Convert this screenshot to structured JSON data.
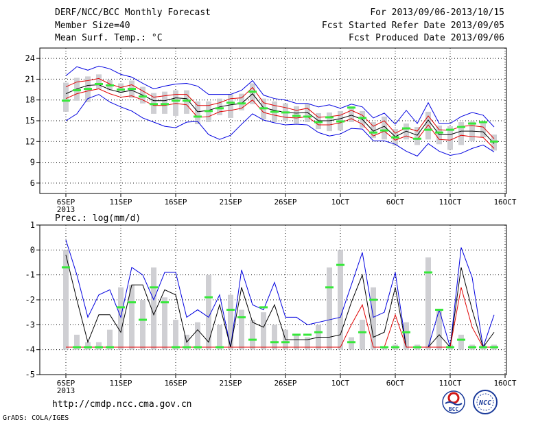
{
  "header": {
    "title": "DERF/NCC/BCC Monthly Forecast",
    "member_size": "Member Size=40",
    "variable1": "Mean Surf. Temp.: °C",
    "forecast_period": "For 2013/09/06-2013/10/15",
    "refer_date": "Fcst Started Refer Date 2013/09/05",
    "produced_date": "Fcst Produced Date 2013/09/06"
  },
  "footer": {
    "url": "http://cmdp.ncc.cma.gov.cn",
    "credit": "GrADS: COLA/IGES",
    "logo_left_text": "BCC",
    "logo_right_text": "NCC"
  },
  "colors": {
    "spread": "#0000e0",
    "band": "#e00000",
    "mean": "#000000",
    "observed": "#36e83a",
    "bar": "#cfcfd3",
    "grid": "#000000"
  },
  "chart_data": [
    {
      "type": "line",
      "title": "Mean Surf. Temp.: °C",
      "x_tick_labels": [
        "6SEP",
        "11SEP",
        "16SEP",
        "21SEP",
        "26SEP",
        "1OCT",
        "6OCT",
        "11OCT",
        "16OCT"
      ],
      "x_sublabel": "2013",
      "x": [
        0,
        1,
        2,
        3,
        4,
        5,
        6,
        7,
        8,
        9,
        10,
        11,
        12,
        13,
        14,
        15,
        16,
        17,
        18,
        19,
        20,
        21,
        22,
        23,
        24,
        25,
        26,
        27,
        28,
        29,
        30,
        31,
        32,
        33,
        34,
        35,
        36,
        37,
        38,
        39
      ],
      "ylim": [
        4.5,
        25.5
      ],
      "yticks": [
        6,
        9,
        12,
        15,
        18,
        21,
        24
      ],
      "series": [
        {
          "name": "max",
          "role": "spread",
          "values": [
            21.5,
            22.8,
            22.3,
            22.9,
            22.5,
            21.7,
            21.3,
            20.4,
            19.6,
            20.0,
            20.3,
            20.4,
            20.0,
            18.8,
            18.8,
            18.8,
            19.4,
            20.8,
            18.7,
            18.2,
            18.0,
            17.5,
            17.5,
            17.0,
            17.3,
            16.8,
            17.4,
            17.0,
            15.4,
            16.1,
            14.5,
            16.5,
            14.6,
            17.6,
            14.6,
            14.6,
            15.6,
            16.2,
            15.8,
            14.1
          ]
        },
        {
          "name": "upper",
          "role": "band",
          "values": [
            19.9,
            20.6,
            20.8,
            21.1,
            20.3,
            19.8,
            20.2,
            19.3,
            18.4,
            18.6,
            18.8,
            18.8,
            17.2,
            17.2,
            17.6,
            18.2,
            18.3,
            19.8,
            17.6,
            17.2,
            16.9,
            16.5,
            16.8,
            15.5,
            15.6,
            15.8,
            16.5,
            15.8,
            14.2,
            15.0,
            13.2,
            14.0,
            13.5,
            15.7,
            13.7,
            13.6,
            14.2,
            14.3,
            14.1,
            12.4
          ]
        },
        {
          "name": "ensemble mean",
          "role": "mean",
          "values": [
            18.9,
            19.6,
            20.1,
            20.2,
            19.5,
            19.1,
            19.4,
            18.7,
            17.9,
            17.9,
            18.3,
            18.2,
            16.3,
            16.5,
            17.0,
            17.3,
            17.5,
            18.9,
            16.9,
            16.5,
            16.2,
            16.1,
            16.2,
            15.0,
            15.0,
            15.3,
            15.8,
            15.2,
            13.5,
            14.2,
            12.7,
            13.5,
            12.9,
            15.1,
            13.0,
            13.0,
            13.5,
            13.5,
            13.4,
            11.7
          ]
        },
        {
          "name": "lower",
          "role": "band",
          "values": [
            18.2,
            18.9,
            19.3,
            19.6,
            18.9,
            18.4,
            18.6,
            18.0,
            17.2,
            17.2,
            17.5,
            17.3,
            15.5,
            15.6,
            16.3,
            16.5,
            16.8,
            18.0,
            16.2,
            15.8,
            15.5,
            15.4,
            15.6,
            14.4,
            14.4,
            14.7,
            15.3,
            14.5,
            12.8,
            13.5,
            12.2,
            12.8,
            12.3,
            14.4,
            12.3,
            12.2,
            12.9,
            12.7,
            12.6,
            11.0
          ]
        },
        {
          "name": "min",
          "role": "spread",
          "values": [
            15.0,
            16.0,
            18.2,
            18.8,
            17.7,
            17.0,
            16.4,
            15.4,
            14.8,
            14.2,
            14.0,
            14.8,
            14.9,
            13.0,
            12.3,
            12.9,
            14.5,
            16.0,
            15.1,
            14.7,
            14.4,
            14.5,
            14.4,
            13.3,
            12.8,
            13.1,
            13.9,
            13.8,
            12.1,
            12.1,
            11.6,
            10.6,
            9.9,
            11.7,
            10.6,
            10.0,
            10.3,
            11.0,
            11.5,
            10.5
          ]
        }
      ],
      "observed_markers": [
        17.9,
        19.4,
        19.6,
        20.3,
        20.1,
        19.5,
        19.6,
        18.5,
        17.4,
        17.4,
        17.9,
        17.9,
        15.6,
        16.4,
        16.8,
        17.6,
        17.5,
        19.2,
        16.8,
        16.3,
        16.2,
        15.7,
        15.6,
        14.8,
        15.5,
        14.9,
        16.9,
        15.4,
        13.3,
        13.6,
        12.6,
        13.9,
        12.4,
        13.7,
        13.3,
        13.7,
        14.1,
        14.6,
        14.8,
        12.0
      ],
      "bars_low": [
        16.3,
        17.9,
        17.7,
        19.6,
        19.4,
        19.0,
        18.3,
        17.5,
        16.0,
        16.0,
        15.7,
        16.0,
        14.5,
        14.8,
        15.8,
        15.4,
        16.5,
        17.4,
        15.2,
        14.8,
        14.9,
        14.6,
        14.8,
        13.8,
        13.5,
        13.6,
        14.8,
        14.0,
        12.5,
        12.3,
        11.4,
        12.3,
        11.5,
        12.3,
        11.6,
        10.8,
        11.5,
        12.1,
        12.6,
        10.7
      ]
    },
    {
      "type": "line",
      "title": "Prec.: log(mm/d)",
      "x_tick_labels": [
        "6SEP",
        "11SEP",
        "16SEP",
        "21SEP",
        "26SEP",
        "1OCT",
        "6OCT",
        "11OCT",
        "16OCT"
      ],
      "x_sublabel": "2013",
      "x": [
        0,
        1,
        2,
        3,
        4,
        5,
        6,
        7,
        8,
        9,
        10,
        11,
        12,
        13,
        14,
        15,
        16,
        17,
        18,
        19,
        20,
        21,
        22,
        23,
        24,
        25,
        26,
        27,
        28,
        29,
        30,
        31,
        32,
        33,
        34,
        35,
        36,
        37,
        38,
        39
      ],
      "ylim": [
        -5,
        1
      ],
      "yticks": [
        -5,
        -4,
        -3,
        -2,
        -1,
        0,
        1
      ],
      "series": [
        {
          "name": "max",
          "role": "spread",
          "values": [
            0.4,
            -1.0,
            -2.7,
            -1.8,
            -1.6,
            -2.7,
            -0.7,
            -1.0,
            -2.0,
            -0.9,
            -0.9,
            -2.7,
            -2.4,
            -2.7,
            -1.8,
            -3.9,
            -0.8,
            -2.2,
            -2.4,
            -1.3,
            -2.7,
            -2.7,
            -3.0,
            -2.9,
            -2.8,
            -2.7,
            -1.4,
            -0.1,
            -2.7,
            -2.5,
            -0.9,
            -3.9,
            -3.9,
            -3.9,
            -2.4,
            -3.9,
            0.1,
            -1.1,
            -3.9,
            -2.6
          ]
        },
        {
          "name": "ensemble mean",
          "role": "mean",
          "values": [
            -0.2,
            -2.0,
            -3.7,
            -2.6,
            -2.6,
            -3.3,
            -1.4,
            -1.4,
            -2.6,
            -1.6,
            -1.8,
            -3.7,
            -3.2,
            -3.7,
            -2.2,
            -3.9,
            -1.5,
            -2.9,
            -3.1,
            -2.2,
            -3.6,
            -3.6,
            -3.6,
            -3.5,
            -3.5,
            -3.4,
            -2.1,
            -1.0,
            -3.5,
            -3.3,
            -1.5,
            -3.9,
            -3.9,
            -3.9,
            -3.4,
            -3.9,
            -0.7,
            -2.4,
            -3.9,
            -3.3
          ]
        },
        {
          "name": "lower",
          "role": "band",
          "values": [
            -3.9,
            -3.9,
            -3.9,
            -3.9,
            -3.9,
            -3.9,
            -3.9,
            -3.9,
            -3.9,
            -3.9,
            -3.9,
            -3.9,
            -3.9,
            -3.9,
            -3.9,
            -3.9,
            -3.9,
            -3.9,
            -3.9,
            -3.9,
            -3.9,
            -3.9,
            -3.9,
            -3.9,
            -3.9,
            -3.9,
            -3.0,
            -2.2,
            -3.9,
            -3.9,
            -2.6,
            -3.9,
            -3.9,
            -3.9,
            -3.9,
            -3.9,
            -1.5,
            -3.1,
            -3.9,
            -3.9
          ]
        }
      ],
      "observed_markers": [
        -0.7,
        -3.9,
        -3.9,
        -3.9,
        -3.9,
        -2.3,
        -2.1,
        -2.8,
        -1.5,
        -2.1,
        -3.9,
        -3.9,
        -3.9,
        -1.9,
        -3.9,
        -2.4,
        -2.7,
        -3.6,
        -2.3,
        -3.7,
        -3.7,
        -3.4,
        -3.4,
        -3.3,
        -1.5,
        -0.6,
        -3.7,
        -3.3,
        -2.0,
        -3.9,
        -3.9,
        -3.3,
        -3.9,
        -0.9,
        -2.4,
        -3.9,
        -3.6,
        -3.9,
        -3.9,
        -3.9
      ],
      "bars_top": [
        0.0,
        -3.4,
        -3.7,
        -3.7,
        -3.2,
        -1.5,
        -1.4,
        -2.0,
        -0.7,
        -1.9,
        -2.8,
        -3.4,
        -2.9,
        -1.0,
        -3.0,
        -1.8,
        -2.4,
        -2.8,
        -2.5,
        -3.0,
        -3.2,
        -3.4,
        -3.5,
        -3.0,
        -0.7,
        0.0,
        -3.5,
        -2.8,
        -1.5,
        -3.9,
        -3.8,
        -2.9,
        -3.8,
        -0.3,
        -2.4,
        -3.8,
        -3.4,
        -3.8,
        -3.8,
        -3.8
      ]
    }
  ]
}
